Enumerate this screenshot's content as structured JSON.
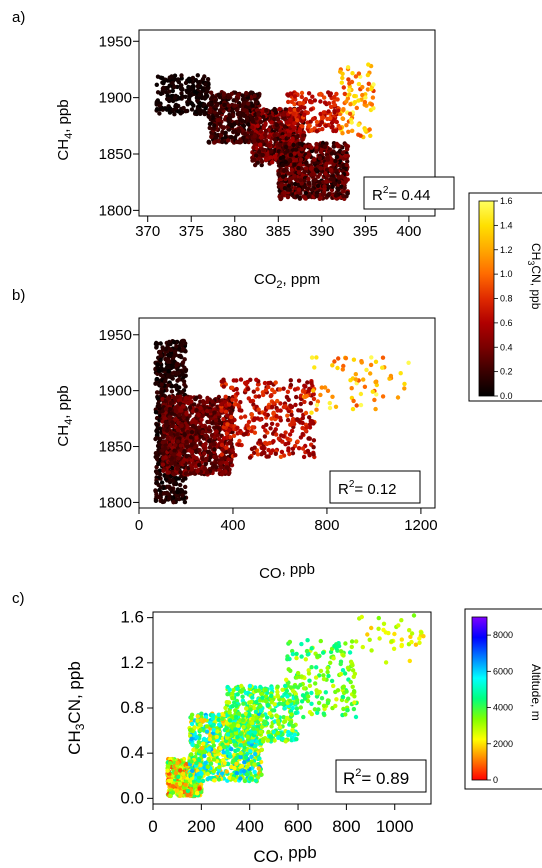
{
  "panels": [
    {
      "id": "a",
      "label": "a)",
      "xlabel_main": "CO",
      "xlabel_sub": "2",
      "xlabel_tail": ", ppm",
      "ylabel_main": "CH",
      "ylabel_sub": "4",
      "ylabel_tail": ", ppb",
      "r2_lead": "R",
      "r2_sup": "2",
      "r2_value": "= 0.44",
      "colorbar": "cb1"
    },
    {
      "id": "b",
      "label": "b)",
      "xlabel_main": "CO",
      "xlabel_sub": "",
      "xlabel_tail": ", ppb",
      "ylabel_main": "CH",
      "ylabel_sub": "4",
      "ylabel_tail": ", ppb",
      "r2_lead": "R",
      "r2_sup": "2",
      "r2_value": "= 0.12",
      "colorbar": "cb1"
    },
    {
      "id": "c",
      "label": "c)",
      "xlabel_main": "CO",
      "xlabel_sub": "",
      "xlabel_tail": ", ppb",
      "ylabel_main": "CH",
      "ylabel_sub": "3",
      "ylabel_tail": "CN, ppb",
      "r2_lead": "R",
      "r2_sup": "2",
      "r2_value": "= 0.89",
      "colorbar": "cb2"
    }
  ],
  "colorbars": {
    "cb1": {
      "title_main": "CH",
      "title_sub": "3",
      "title_tail": "CN, ppb",
      "ticks": [
        "0.0",
        "0.2",
        "0.4",
        "0.6",
        "0.8",
        "1.0",
        "1.2",
        "1.4",
        "1.6"
      ],
      "range": [
        0,
        1.6
      ],
      "colormap": "hot",
      "colors": [
        "#000000",
        "#3a0000",
        "#7a0000",
        "#b00000",
        "#e02a00",
        "#ff6a00",
        "#ffa800",
        "#ffe000",
        "#ffff60"
      ]
    },
    "cb2": {
      "title": "Altitude, m",
      "ticks": [
        "0",
        "2000",
        "4000",
        "6000",
        "8000"
      ],
      "range": [
        0,
        9000
      ],
      "colormap": "rainbow",
      "colors": [
        "#ff0000",
        "#ff8000",
        "#ffff00",
        "#80ff00",
        "#00ff80",
        "#00ffff",
        "#0080ff",
        "#0000ff",
        "#8000ff"
      ]
    }
  },
  "chart_data": [
    {
      "type": "scatter",
      "panel": "a",
      "x_field": "CO2 (ppm)",
      "y_field": "CH4 (ppb)",
      "color_field": "CH3CN (ppb)",
      "xlim": [
        369,
        403
      ],
      "ylim": [
        1795,
        1960
      ],
      "xticks": [
        370,
        375,
        380,
        385,
        390,
        395,
        400
      ],
      "yticks": [
        1800,
        1850,
        1900,
        1950
      ],
      "grid": false,
      "r2": 0.44,
      "point_clusters": [
        {
          "x": [
            371,
            377
          ],
          "y": [
            1885,
            1920
          ],
          "color": [
            0.0,
            0.12
          ],
          "count": 220
        },
        {
          "x": [
            377,
            383
          ],
          "y": [
            1860,
            1905
          ],
          "color": [
            0.05,
            0.35
          ],
          "count": 420
        },
        {
          "x": [
            382,
            388
          ],
          "y": [
            1840,
            1890
          ],
          "color": [
            0.1,
            0.6
          ],
          "count": 600
        },
        {
          "x": [
            385,
            393
          ],
          "y": [
            1810,
            1860
          ],
          "color": [
            0.05,
            0.5
          ],
          "count": 700
        },
        {
          "x": [
            386,
            392
          ],
          "y": [
            1870,
            1905
          ],
          "color": [
            0.5,
            0.9
          ],
          "count": 160
        },
        {
          "x": [
            392,
            396
          ],
          "y": [
            1865,
            1930
          ],
          "color": [
            0.8,
            1.6
          ],
          "count": 90
        }
      ]
    },
    {
      "type": "scatter",
      "panel": "b",
      "x_field": "CO (ppb)",
      "y_field": "CH4 (ppb)",
      "color_field": "CH3CN (ppb)",
      "xlim": [
        0,
        1260
      ],
      "ylim": [
        1795,
        1965
      ],
      "xticks": [
        0,
        400,
        800,
        1200
      ],
      "yticks": [
        1800,
        1850,
        1900,
        1950
      ],
      "grid": false,
      "r2": 0.12,
      "point_clusters": [
        {
          "x": [
            70,
            200
          ],
          "y": [
            1800,
            1945
          ],
          "color": [
            0.0,
            0.2
          ],
          "count": 650
        },
        {
          "x": [
            100,
            400
          ],
          "y": [
            1825,
            1895
          ],
          "color": [
            0.15,
            0.5
          ],
          "count": 900
        },
        {
          "x": [
            350,
            750
          ],
          "y": [
            1840,
            1910
          ],
          "color": [
            0.4,
            0.9
          ],
          "count": 350
        },
        {
          "x": [
            700,
            1150
          ],
          "y": [
            1880,
            1930
          ],
          "color": [
            0.9,
            1.6
          ],
          "count": 70
        }
      ]
    },
    {
      "type": "scatter",
      "panel": "c",
      "x_field": "CO (ppb)",
      "y_field": "CH3CN (ppb)",
      "color_field": "Altitude (m)",
      "xlim": [
        0,
        1150
      ],
      "ylim": [
        -0.05,
        1.65
      ],
      "xticks": [
        0,
        200,
        400,
        600,
        800,
        1000
      ],
      "yticks": [
        0.0,
        0.4,
        0.8,
        1.2,
        1.6
      ],
      "grid": false,
      "r2": 0.89,
      "point_clusters": [
        {
          "x": [
            60,
            200
          ],
          "y": [
            0.02,
            0.35
          ],
          "color": [
            500,
            4500
          ],
          "count": 500
        },
        {
          "x": [
            150,
            450
          ],
          "y": [
            0.15,
            0.75
          ],
          "color": [
            1500,
            6500
          ],
          "count": 700
        },
        {
          "x": [
            300,
            600
          ],
          "y": [
            0.5,
            1.0
          ],
          "color": [
            2500,
            5500
          ],
          "count": 400
        },
        {
          "x": [
            550,
            850
          ],
          "y": [
            0.7,
            1.4
          ],
          "color": [
            2500,
            5000
          ],
          "count": 180
        },
        {
          "x": [
            850,
            1120
          ],
          "y": [
            1.2,
            1.62
          ],
          "color": [
            1500,
            3500
          ],
          "count": 40
        }
      ]
    }
  ]
}
